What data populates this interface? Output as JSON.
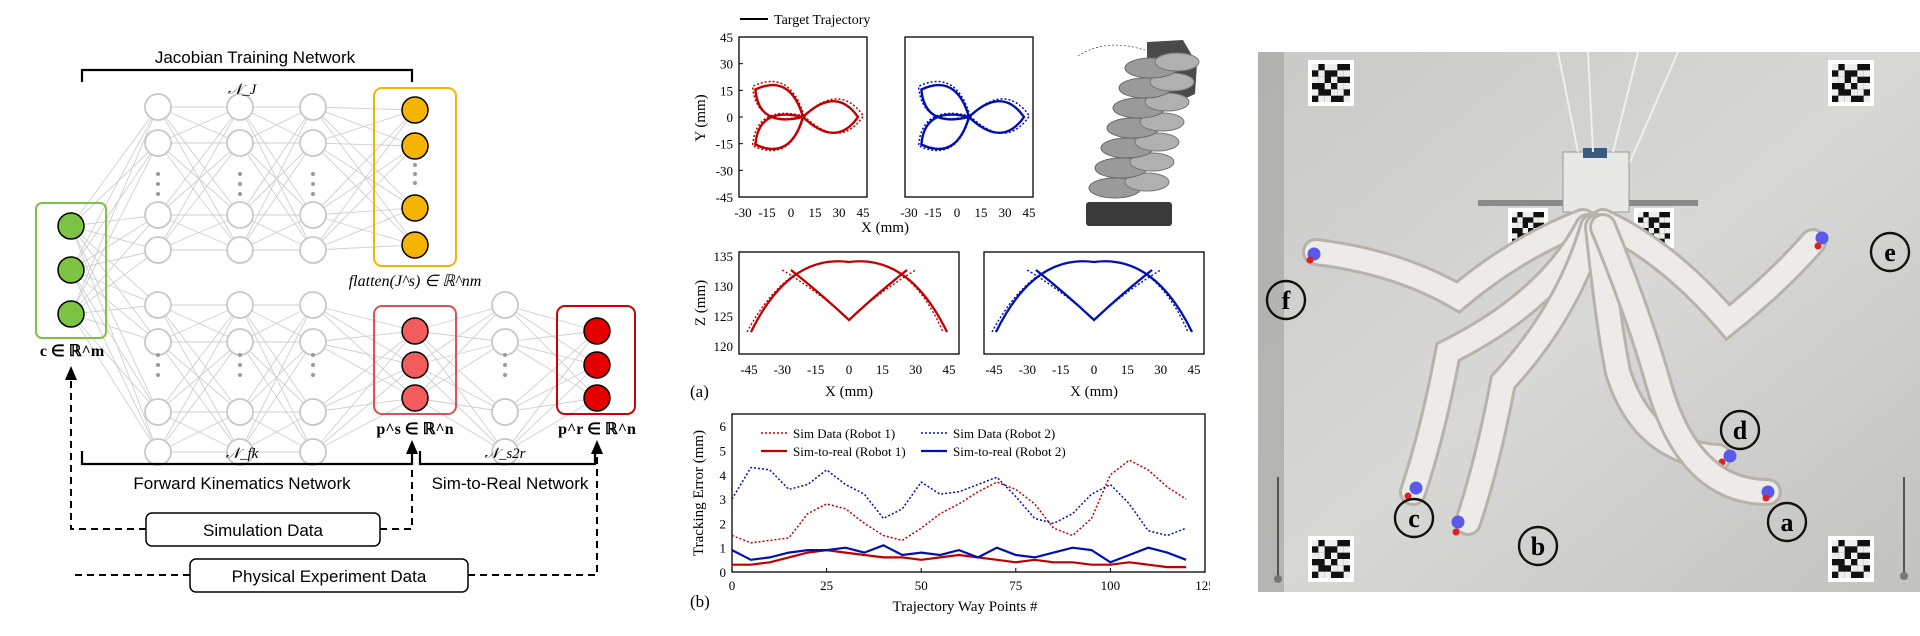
{
  "nn_diagram": {
    "jacobian_net_label": "Jacobian Training Network",
    "nj_label": "𝒩_J",
    "flatten_label": "flatten(J^s) ∈ ℝ^nm",
    "c_label": "c ∈ ℝ^m",
    "nfk_label": "𝒩_fk",
    "ps_label": "p^s ∈ ℝ^n",
    "ns2r_label": "𝒩_s2r",
    "pr_label": "p^r ∈ ℝ^n",
    "forward_kinematics_label": "Forward Kinematics Network",
    "sim_to_real_label": "Sim-to-Real Network",
    "simulation_data_label": "Simulation Data",
    "physical_experiment_label": "Physical Experiment Data",
    "colors": {
      "green": "#7cc243",
      "yellow": "#f5b400",
      "red_light": "#f25c5c",
      "red_dark": "#e50000",
      "gray": "#c8c8c8"
    }
  },
  "plots": {
    "legend_target": "Target Trajectory",
    "xy_ylabel": "Y (mm)",
    "xy_xlabel": "X (mm)",
    "xy_yticks": [
      "45",
      "30",
      "15",
      "0",
      "-15",
      "-30",
      "-45"
    ],
    "xy_xticks": [
      "-30",
      "-15",
      "0",
      "15",
      "30",
      "45"
    ],
    "xz_ylabel": "Z (mm)",
    "xz_xlabel": "X (mm)",
    "xz_yticks": [
      "135",
      "130",
      "125",
      "120"
    ],
    "xz_xticks": [
      "-45",
      "-30",
      "-15",
      "0",
      "15",
      "30",
      "45"
    ],
    "label_a": "(a)",
    "label_b": "(b)",
    "err_ylabel": "Tracking Error (mm)",
    "err_xlabel": "Trajectory Way Points #",
    "err_yticks": [
      "6",
      "5",
      "4",
      "3",
      "2",
      "1",
      "0"
    ],
    "err_xticks": [
      "0",
      "25",
      "50",
      "75",
      "100",
      "125"
    ],
    "legend_sim1": "Sim Data (Robot 1)",
    "legend_sim2": "Sim Data (Robot 2)",
    "legend_real1": "Sim-to-real (Robot 1)",
    "legend_real2": "Sim-to-real (Robot 2)",
    "colors": {
      "robot1": "#c00000",
      "robot2": "#0010b0"
    }
  },
  "chart_data": {
    "type": "line",
    "title": "",
    "xlabel": "Trajectory Way Points #",
    "ylabel": "Tracking Error (mm)",
    "xlim": [
      0,
      125
    ],
    "ylim": [
      0,
      6.5
    ],
    "x": [
      0,
      5,
      10,
      15,
      20,
      25,
      30,
      35,
      40,
      45,
      50,
      55,
      60,
      65,
      70,
      75,
      80,
      85,
      90,
      95,
      100,
      105,
      110,
      115,
      120
    ],
    "series": [
      {
        "name": "Sim Data (Robot 1)",
        "style": "dotted",
        "values": [
          1.5,
          1.2,
          1.3,
          1.4,
          2.4,
          2.8,
          2.6,
          2.0,
          1.5,
          1.3,
          1.8,
          2.4,
          2.8,
          3.3,
          3.7,
          3.4,
          2.8,
          1.8,
          1.5,
          2.2,
          4.0,
          4.6,
          4.2,
          3.5,
          3.0
        ]
      },
      {
        "name": "Sim Data (Robot 2)",
        "style": "dotted",
        "values": [
          3.0,
          4.3,
          4.2,
          3.4,
          3.6,
          4.2,
          3.6,
          3.2,
          2.2,
          2.6,
          3.7,
          3.2,
          3.3,
          3.6,
          3.9,
          3.1,
          2.2,
          2.0,
          2.4,
          3.2,
          3.6,
          2.8,
          1.7,
          1.5,
          1.8
        ]
      },
      {
        "name": "Sim-to-real (Robot 1)",
        "style": "solid",
        "values": [
          0.3,
          0.3,
          0.4,
          0.6,
          0.8,
          0.9,
          0.8,
          0.7,
          0.6,
          0.6,
          0.5,
          0.6,
          0.7,
          0.6,
          0.5,
          0.4,
          0.5,
          0.4,
          0.4,
          0.3,
          0.3,
          0.4,
          0.3,
          0.2,
          0.2
        ]
      },
      {
        "name": "Sim-to-real (Robot 2)",
        "style": "solid",
        "values": [
          0.9,
          0.5,
          0.6,
          0.8,
          0.9,
          0.9,
          1.0,
          0.8,
          1.1,
          0.7,
          0.8,
          0.7,
          0.9,
          0.6,
          1.0,
          0.7,
          0.6,
          0.8,
          1.0,
          0.9,
          0.4,
          0.7,
          1.0,
          0.8,
          0.5
        ]
      }
    ]
  },
  "photo": {
    "labels": [
      "f",
      "e",
      "d",
      "c",
      "b",
      "a"
    ]
  }
}
